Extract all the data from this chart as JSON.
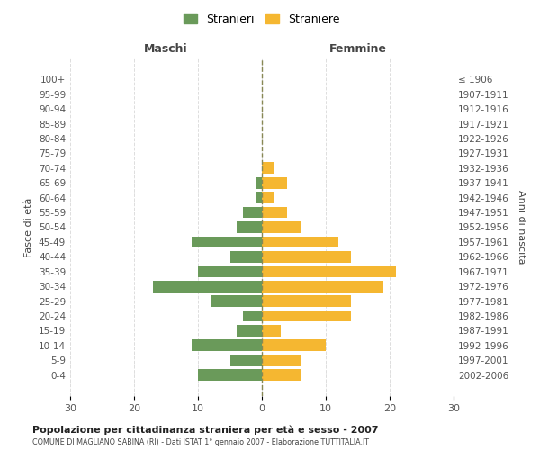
{
  "age_groups": [
    "0-4",
    "5-9",
    "10-14",
    "15-19",
    "20-24",
    "25-29",
    "30-34",
    "35-39",
    "40-44",
    "45-49",
    "50-54",
    "55-59",
    "60-64",
    "65-69",
    "70-74",
    "75-79",
    "80-84",
    "85-89",
    "90-94",
    "95-99",
    "100+"
  ],
  "birth_years": [
    "2002-2006",
    "1997-2001",
    "1992-1996",
    "1987-1991",
    "1982-1986",
    "1977-1981",
    "1972-1976",
    "1967-1971",
    "1962-1966",
    "1957-1961",
    "1952-1956",
    "1947-1951",
    "1942-1946",
    "1937-1941",
    "1932-1936",
    "1927-1931",
    "1922-1926",
    "1917-1921",
    "1912-1916",
    "1907-1911",
    "≤ 1906"
  ],
  "maschi": [
    10,
    5,
    11,
    4,
    3,
    8,
    17,
    10,
    5,
    11,
    4,
    3,
    1,
    1,
    0,
    0,
    0,
    0,
    0,
    0,
    0
  ],
  "femmine": [
    6,
    6,
    10,
    3,
    14,
    14,
    19,
    21,
    14,
    12,
    6,
    4,
    2,
    4,
    2,
    0,
    0,
    0,
    0,
    0,
    0
  ],
  "color_maschi": "#6a9a5a",
  "color_femmine": "#f5b731",
  "color_dashed": "#888855",
  "title": "Popolazione per cittadinanza straniera per età e sesso - 2007",
  "subtitle": "COMUNE DI MAGLIANO SABINA (RI) - Dati ISTAT 1° gennaio 2007 - Elaborazione TUTTITALIA.IT",
  "xlabel_left": "Maschi",
  "xlabel_right": "Femmine",
  "ylabel_left": "Fasce di età",
  "ylabel_right": "Anni di nascita",
  "legend_maschi": "Stranieri",
  "legend_femmine": "Straniere",
  "xlim": 30,
  "background_color": "#ffffff",
  "grid_color": "#dddddd"
}
